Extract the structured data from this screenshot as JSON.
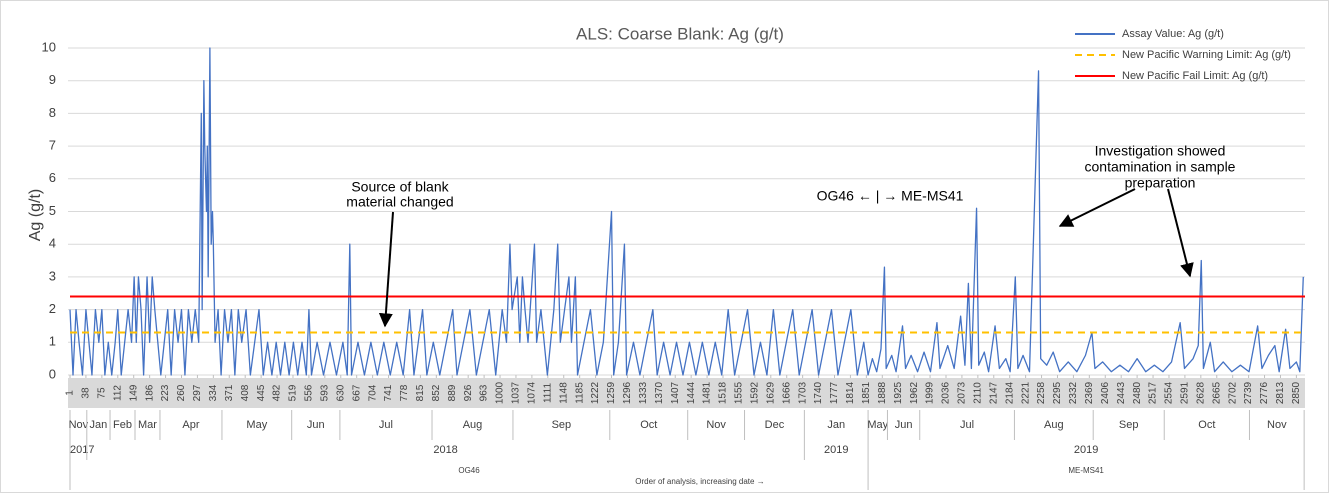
{
  "chart_data": {
    "type": "line",
    "title": "ALS: Coarse Blank: Ag (g/t)",
    "ylabel": "Ag (g/t)",
    "xlabel": "Order of analysis, increasing date →",
    "xlim": [
      1,
      2870
    ],
    "ylim": [
      0,
      10
    ],
    "yticks": [
      0,
      1,
      2,
      3,
      4,
      5,
      6,
      7,
      8,
      9,
      10
    ],
    "xticks": [
      1,
      38,
      75,
      112,
      149,
      186,
      223,
      260,
      297,
      334,
      371,
      408,
      445,
      482,
      519,
      556,
      593,
      630,
      667,
      704,
      741,
      778,
      815,
      852,
      889,
      926,
      963,
      1000,
      1037,
      1074,
      1111,
      1148,
      1185,
      1222,
      1259,
      1296,
      1333,
      1370,
      1407,
      1444,
      1481,
      1518,
      1555,
      1592,
      1629,
      1666,
      1703,
      1740,
      1777,
      1814,
      1851,
      1888,
      1925,
      1962,
      1999,
      2036,
      2073,
      2110,
      2147,
      2184,
      2221,
      2258,
      2295,
      2332,
      2369,
      2406,
      2443,
      2480,
      2517,
      2554,
      2591,
      2628,
      2665,
      2702,
      2739,
      2776,
      2813,
      2850
    ],
    "grid": true,
    "legend": "top-right",
    "series": [
      {
        "name": "Assay Value: Ag (g/t)",
        "color": "#4472c4",
        "dash": false,
        "x": [
          1,
          8,
          15,
          22,
          30,
          38,
          45,
          52,
          60,
          68,
          75,
          82,
          90,
          98,
          106,
          112,
          120,
          128,
          136,
          144,
          150,
          155,
          160,
          166,
          172,
          180,
          186,
          192,
          198,
          205,
          212,
          220,
          228,
          236,
          244,
          252,
          260,
          268,
          276,
          284,
          292,
          300,
          306,
          308,
          312,
          314,
          318,
          320,
          322,
          326,
          329,
          332,
          334,
          338,
          345,
          352,
          360,
          368,
          376,
          384,
          392,
          400,
          410,
          420,
          430,
          440,
          450,
          460,
          470,
          480,
          490,
          500,
          510,
          520,
          530,
          540,
          550,
          556,
          562,
          575,
          590,
          605,
          620,
          635,
          645,
          651,
          655,
          670,
          685,
          700,
          715,
          730,
          745,
          760,
          775,
          790,
          800,
          810,
          820,
          830,
          845,
          860,
          875,
          890,
          900,
          915,
          930,
          945,
          960,
          975,
          990,
          1005,
          1015,
          1023,
          1028,
          1040,
          1046,
          1052,
          1058,
          1065,
          1080,
          1085,
          1095,
          1110,
          1125,
          1134,
          1140,
          1150,
          1160,
          1166,
          1175,
          1180,
          1195,
          1210,
          1225,
          1240,
          1259,
          1264,
          1275,
          1289,
          1294,
          1310,
          1325,
          1340,
          1355,
          1365,
          1380,
          1395,
          1410,
          1425,
          1440,
          1455,
          1470,
          1485,
          1500,
          1515,
          1530,
          1545,
          1560,
          1575,
          1590,
          1605,
          1620,
          1635,
          1650,
          1665,
          1680,
          1695,
          1710,
          1725,
          1740,
          1755,
          1770,
          1785,
          1800,
          1815,
          1830,
          1845,
          1855,
          1865,
          1875,
          1885,
          1893,
          1897,
          1910,
          1920,
          1935,
          1942,
          1955,
          1970,
          1985,
          2000,
          2015,
          2022,
          2040,
          2055,
          2070,
          2080,
          2088,
          2095,
          2107,
          2112,
          2125,
          2135,
          2150,
          2160,
          2175,
          2185,
          2197,
          2203,
          2215,
          2230,
          2251,
          2256,
          2270,
          2285,
          2300,
          2320,
          2340,
          2360,
          2375,
          2382,
          2400,
          2420,
          2440,
          2460,
          2480,
          2500,
          2520,
          2540,
          2560,
          2580,
          2590,
          2610,
          2622,
          2629,
          2634,
          2650,
          2660,
          2680,
          2700,
          2720,
          2740,
          2760,
          2770,
          2785,
          2800,
          2810,
          2825,
          2835,
          2850,
          2858,
          2866
        ],
        "values": [
          2,
          0,
          2,
          1,
          0,
          2,
          1,
          0,
          2,
          1,
          2,
          0,
          1,
          0,
          1,
          2,
          0,
          1,
          2,
          1,
          3,
          1,
          3,
          2,
          0,
          3,
          1,
          3,
          2,
          1,
          0,
          1,
          2,
          0,
          2,
          1,
          2,
          0,
          2,
          1,
          2,
          1,
          8,
          2,
          9,
          7,
          5,
          7,
          3,
          10,
          4,
          5,
          4,
          1,
          2,
          0,
          2,
          1,
          2,
          0,
          2,
          1,
          2,
          0,
          1,
          2,
          0,
          1,
          0,
          1,
          0,
          1,
          0,
          1,
          0,
          1,
          0,
          2,
          0,
          1,
          0,
          1,
          0,
          1,
          0,
          4,
          0,
          1,
          0,
          1,
          0,
          1,
          0,
          1,
          0,
          2,
          0,
          1,
          2,
          0,
          1,
          0,
          1,
          2,
          0,
          1,
          2,
          0,
          1,
          2,
          0,
          2,
          1,
          4,
          2,
          3,
          1,
          3,
          2,
          1,
          4,
          1,
          2,
          0,
          2,
          4,
          1,
          2,
          3,
          1,
          3,
          0,
          1,
          2,
          0,
          1,
          5,
          0,
          1,
          4,
          0,
          1,
          0,
          1,
          2,
          0,
          1,
          0,
          1,
          0,
          1,
          0,
          1,
          0,
          1,
          0,
          2,
          0,
          1,
          2,
          0,
          1,
          0,
          2,
          0,
          1,
          2,
          0,
          1,
          2,
          0,
          1,
          2,
          0,
          1,
          2,
          0,
          1,
          0,
          0.5,
          0.1,
          0.8,
          3.3,
          0.2,
          0.6,
          0.1,
          1.5,
          0.2,
          0.6,
          0.1,
          0.7,
          0.1,
          1.6,
          0.2,
          0.9,
          0.2,
          1.8,
          0.3,
          2.8,
          0.2,
          5.1,
          0.3,
          0.7,
          0.1,
          1.5,
          0.2,
          0.5,
          0.1,
          3,
          0.2,
          0.6,
          0.1,
          9.3,
          0.5,
          0.3,
          0.7,
          0.1,
          0.4,
          0.1,
          0.6,
          1.3,
          0.2,
          0.4,
          0.1,
          0.3,
          0.1,
          0.5,
          0.1,
          0.3,
          0.1,
          0.4,
          1.6,
          0.2,
          0.5,
          0.9,
          3.5,
          0.2,
          1,
          0.1,
          0.4,
          0.1,
          0.3,
          0.1,
          1.5,
          0.2,
          0.6,
          0.9,
          0.1,
          1.4,
          0.2,
          0.4,
          0.1,
          3
        ]
      },
      {
        "name": "New Pacific Warning Limit: Ag (g/t)",
        "color": "#ffc000",
        "dash": true,
        "x": [
          1,
          2870
        ],
        "values": [
          1.3,
          1.3
        ]
      },
      {
        "name": "New Pacific Fail Limit: Ag (g/t)",
        "color": "#ff0000",
        "dash": false,
        "x": [
          1,
          2870
        ],
        "values": [
          2.4,
          2.4
        ]
      }
    ],
    "months": [
      {
        "label": "Nov",
        "start": 1,
        "end": 40
      },
      {
        "label": "Jan",
        "start": 40,
        "end": 94
      },
      {
        "label": "Feb",
        "start": 94,
        "end": 152
      },
      {
        "label": "Mar",
        "start": 152,
        "end": 210
      },
      {
        "label": "Apr",
        "start": 210,
        "end": 354
      },
      {
        "label": "May",
        "start": 354,
        "end": 516
      },
      {
        "label": "Jun",
        "start": 516,
        "end": 628
      },
      {
        "label": "Jul",
        "start": 628,
        "end": 842
      },
      {
        "label": "Aug",
        "start": 842,
        "end": 1030
      },
      {
        "label": "Sep",
        "start": 1030,
        "end": 1255
      },
      {
        "label": "Oct",
        "start": 1255,
        "end": 1436
      },
      {
        "label": "Nov",
        "start": 1436,
        "end": 1568
      },
      {
        "label": "Dec",
        "start": 1568,
        "end": 1707
      },
      {
        "label": "Jan",
        "start": 1707,
        "end": 1855
      },
      {
        "label": "May",
        "start": 1855,
        "end": 1900
      },
      {
        "label": "Jun",
        "start": 1900,
        "end": 1975
      },
      {
        "label": "Jul",
        "start": 1975,
        "end": 2195
      },
      {
        "label": "Aug",
        "start": 2195,
        "end": 2378
      },
      {
        "label": "Sep",
        "start": 2378,
        "end": 2543
      },
      {
        "label": "Oct",
        "start": 2543,
        "end": 2741
      },
      {
        "label": "Nov",
        "start": 2741,
        "end": 2868
      }
    ],
    "years": [
      {
        "label": "2017",
        "start": 1,
        "end": 40
      },
      {
        "label": "2018",
        "start": 40,
        "end": 1707
      },
      {
        "label": "2019",
        "start": 1707,
        "end": 1855
      },
      {
        "label": "2019",
        "start": 1855,
        "end": 2868
      }
    ],
    "methods": [
      {
        "label": "OG46",
        "start": 1,
        "end": 1855
      },
      {
        "label": "ME-MS41",
        "start": 1855,
        "end": 2868
      }
    ],
    "annotations": [
      {
        "lines": [
          "Source of blank",
          "material changed"
        ]
      },
      {
        "lines": [
          "OG46 ← | → ME-MS41"
        ]
      },
      {
        "lines": [
          "Investigation showed",
          "contamination in sample",
          "preparation"
        ]
      }
    ]
  }
}
